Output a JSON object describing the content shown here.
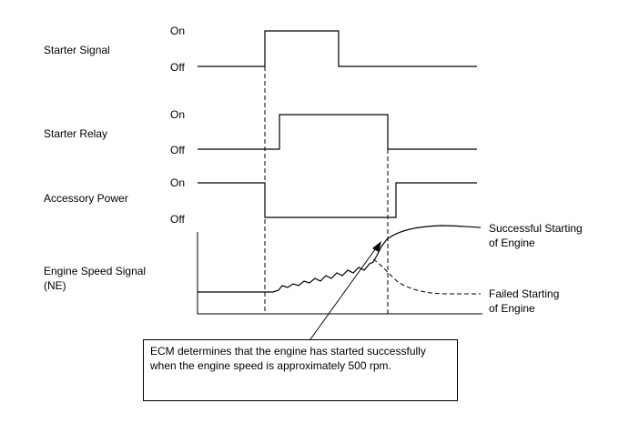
{
  "signals": [
    {
      "label": "Starter Signal",
      "on_label": "On",
      "off_label": "Off"
    },
    {
      "label": "Starter Relay",
      "on_label": "On",
      "off_label": "Off"
    },
    {
      "label": "Accessory Power",
      "on_label": "On",
      "off_label": "Off"
    }
  ],
  "engine_speed": {
    "label_line1": "Engine Speed Signal",
    "label_line2": "(NE)",
    "success_line1": "Successful Starting",
    "success_line2": "of Engine",
    "fail_line1": "Failed Starting",
    "fail_line2": "of Engine"
  },
  "note": {
    "line1": "ECM determines that the engine has started successfully",
    "line2": "when the engine speed is approximately 500 rpm."
  }
}
